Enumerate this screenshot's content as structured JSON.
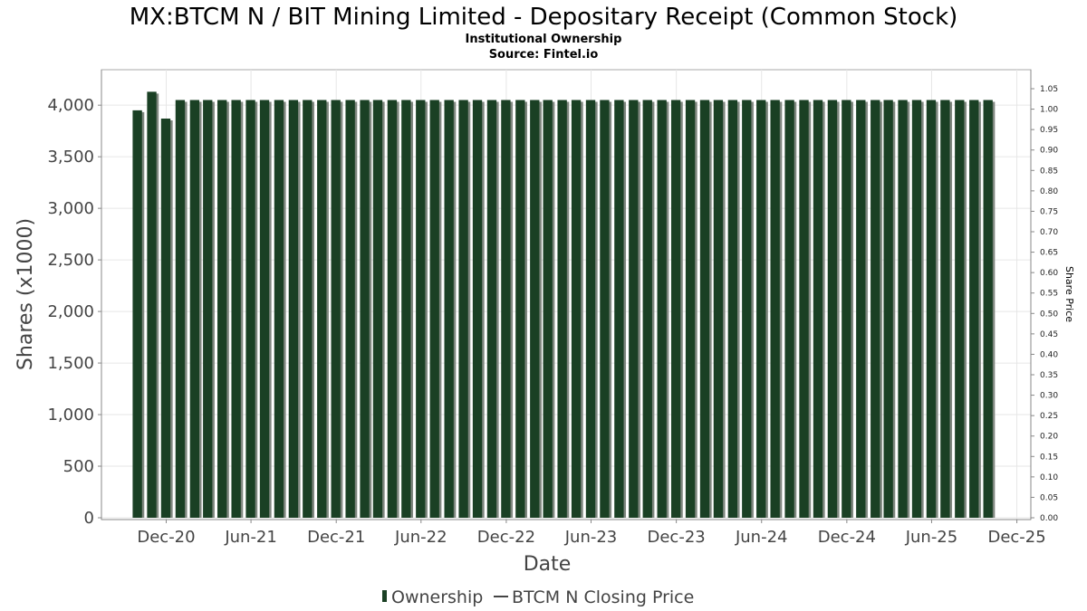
{
  "header": {
    "title": "MX:BTCM N / BIT Mining Limited - Depositary Receipt (Common Stock)",
    "subtitle": "Institutional Ownership",
    "source": "Source: Fintel.io"
  },
  "legend": {
    "ownership_label": "Ownership",
    "price_label": "BTCM N Closing Price",
    "placement": "bottom-center"
  },
  "colors": {
    "bar_fill": "#1a4024",
    "bar_shadow": "#7f877f",
    "grid": "#e6e6e6",
    "axis": "#888888"
  },
  "chart_data": {
    "type": "bar",
    "xlabel": "Date",
    "ylabel": "Shares (x1000)",
    "y2label": "Share Price",
    "ylim": [
      0,
      4300
    ],
    "y2lim": [
      0,
      1.05
    ],
    "xlim": [
      "2020-07-15",
      "2025-12-31"
    ],
    "grid": true,
    "y_ticks": [
      "0",
      "500",
      "1,000",
      "1,500",
      "2,000",
      "2,500",
      "3,000",
      "3,500",
      "4,000"
    ],
    "y2_ticks": [
      "0.00",
      "0.05",
      "0.10",
      "0.15",
      "0.20",
      "0.25",
      "0.30",
      "0.35",
      "0.40",
      "0.45",
      "0.50",
      "0.55",
      "0.60",
      "0.65",
      "0.70",
      "0.75",
      "0.80",
      "0.85",
      "0.90",
      "0.95",
      "1.00",
      "1.05"
    ],
    "x_ticks": [
      {
        "label": "Dec-20",
        "date": "2020-12-01"
      },
      {
        "label": "Jun-21",
        "date": "2021-06-01"
      },
      {
        "label": "Dec-21",
        "date": "2021-12-01"
      },
      {
        "label": "Jun-22",
        "date": "2022-06-01"
      },
      {
        "label": "Dec-22",
        "date": "2022-12-01"
      },
      {
        "label": "Jun-23",
        "date": "2023-06-01"
      },
      {
        "label": "Dec-23",
        "date": "2023-12-01"
      },
      {
        "label": "Jun-24",
        "date": "2024-06-01"
      },
      {
        "label": "Dec-24",
        "date": "2024-12-01"
      },
      {
        "label": "Jun-25",
        "date": "2025-06-01"
      },
      {
        "label": "Dec-25",
        "date": "2025-12-01"
      }
    ],
    "series": [
      {
        "name": "Ownership",
        "points": [
          {
            "date": "2020-09-30",
            "value": 3950
          },
          {
            "date": "2020-10-31",
            "value": 4130
          },
          {
            "date": "2020-11-30",
            "value": 3870
          },
          {
            "date": "2020-12-31",
            "value": 4050
          },
          {
            "date": "2021-01-31",
            "value": 4050
          },
          {
            "date": "2021-02-28",
            "value": 4050
          },
          {
            "date": "2021-03-31",
            "value": 4050
          },
          {
            "date": "2021-04-30",
            "value": 4050
          },
          {
            "date": "2021-05-31",
            "value": 4050
          },
          {
            "date": "2021-06-30",
            "value": 4050
          },
          {
            "date": "2021-07-31",
            "value": 4050
          },
          {
            "date": "2021-08-31",
            "value": 4050
          },
          {
            "date": "2021-09-30",
            "value": 4050
          },
          {
            "date": "2021-10-31",
            "value": 4050
          },
          {
            "date": "2021-11-30",
            "value": 4050
          },
          {
            "date": "2021-12-31",
            "value": 4050
          },
          {
            "date": "2022-01-31",
            "value": 4050
          },
          {
            "date": "2022-02-28",
            "value": 4050
          },
          {
            "date": "2022-03-31",
            "value": 4050
          },
          {
            "date": "2022-04-30",
            "value": 4050
          },
          {
            "date": "2022-05-31",
            "value": 4050
          },
          {
            "date": "2022-06-30",
            "value": 4050
          },
          {
            "date": "2022-07-31",
            "value": 4050
          },
          {
            "date": "2022-08-31",
            "value": 4050
          },
          {
            "date": "2022-09-30",
            "value": 4050
          },
          {
            "date": "2022-10-31",
            "value": 4050
          },
          {
            "date": "2022-11-30",
            "value": 4050
          },
          {
            "date": "2022-12-31",
            "value": 4050
          },
          {
            "date": "2023-01-31",
            "value": 4050
          },
          {
            "date": "2023-02-28",
            "value": 4050
          },
          {
            "date": "2023-03-31",
            "value": 4050
          },
          {
            "date": "2023-04-30",
            "value": 4050
          },
          {
            "date": "2023-05-31",
            "value": 4050
          },
          {
            "date": "2023-06-30",
            "value": 4050
          },
          {
            "date": "2023-07-31",
            "value": 4050
          },
          {
            "date": "2023-08-31",
            "value": 4050
          },
          {
            "date": "2023-09-30",
            "value": 4050
          },
          {
            "date": "2023-10-31",
            "value": 4050
          },
          {
            "date": "2023-11-30",
            "value": 4050
          },
          {
            "date": "2023-12-31",
            "value": 4050
          },
          {
            "date": "2024-01-31",
            "value": 4050
          },
          {
            "date": "2024-02-29",
            "value": 4050
          },
          {
            "date": "2024-03-31",
            "value": 4050
          },
          {
            "date": "2024-04-30",
            "value": 4050
          },
          {
            "date": "2024-05-31",
            "value": 4050
          },
          {
            "date": "2024-06-30",
            "value": 4050
          },
          {
            "date": "2024-07-31",
            "value": 4050
          },
          {
            "date": "2024-08-31",
            "value": 4050
          },
          {
            "date": "2024-09-30",
            "value": 4050
          },
          {
            "date": "2024-10-31",
            "value": 4050
          },
          {
            "date": "2024-11-30",
            "value": 4050
          },
          {
            "date": "2024-12-31",
            "value": 4050
          },
          {
            "date": "2025-01-31",
            "value": 4050
          },
          {
            "date": "2025-02-28",
            "value": 4050
          },
          {
            "date": "2025-03-31",
            "value": 4050
          },
          {
            "date": "2025-04-30",
            "value": 4050
          },
          {
            "date": "2025-05-31",
            "value": 4050
          },
          {
            "date": "2025-06-30",
            "value": 4050
          },
          {
            "date": "2025-07-31",
            "value": 4050
          },
          {
            "date": "2025-08-31",
            "value": 4050
          },
          {
            "date": "2025-09-30",
            "value": 4050
          }
        ]
      },
      {
        "name": "BTCM N Closing Price",
        "points": []
      }
    ]
  }
}
